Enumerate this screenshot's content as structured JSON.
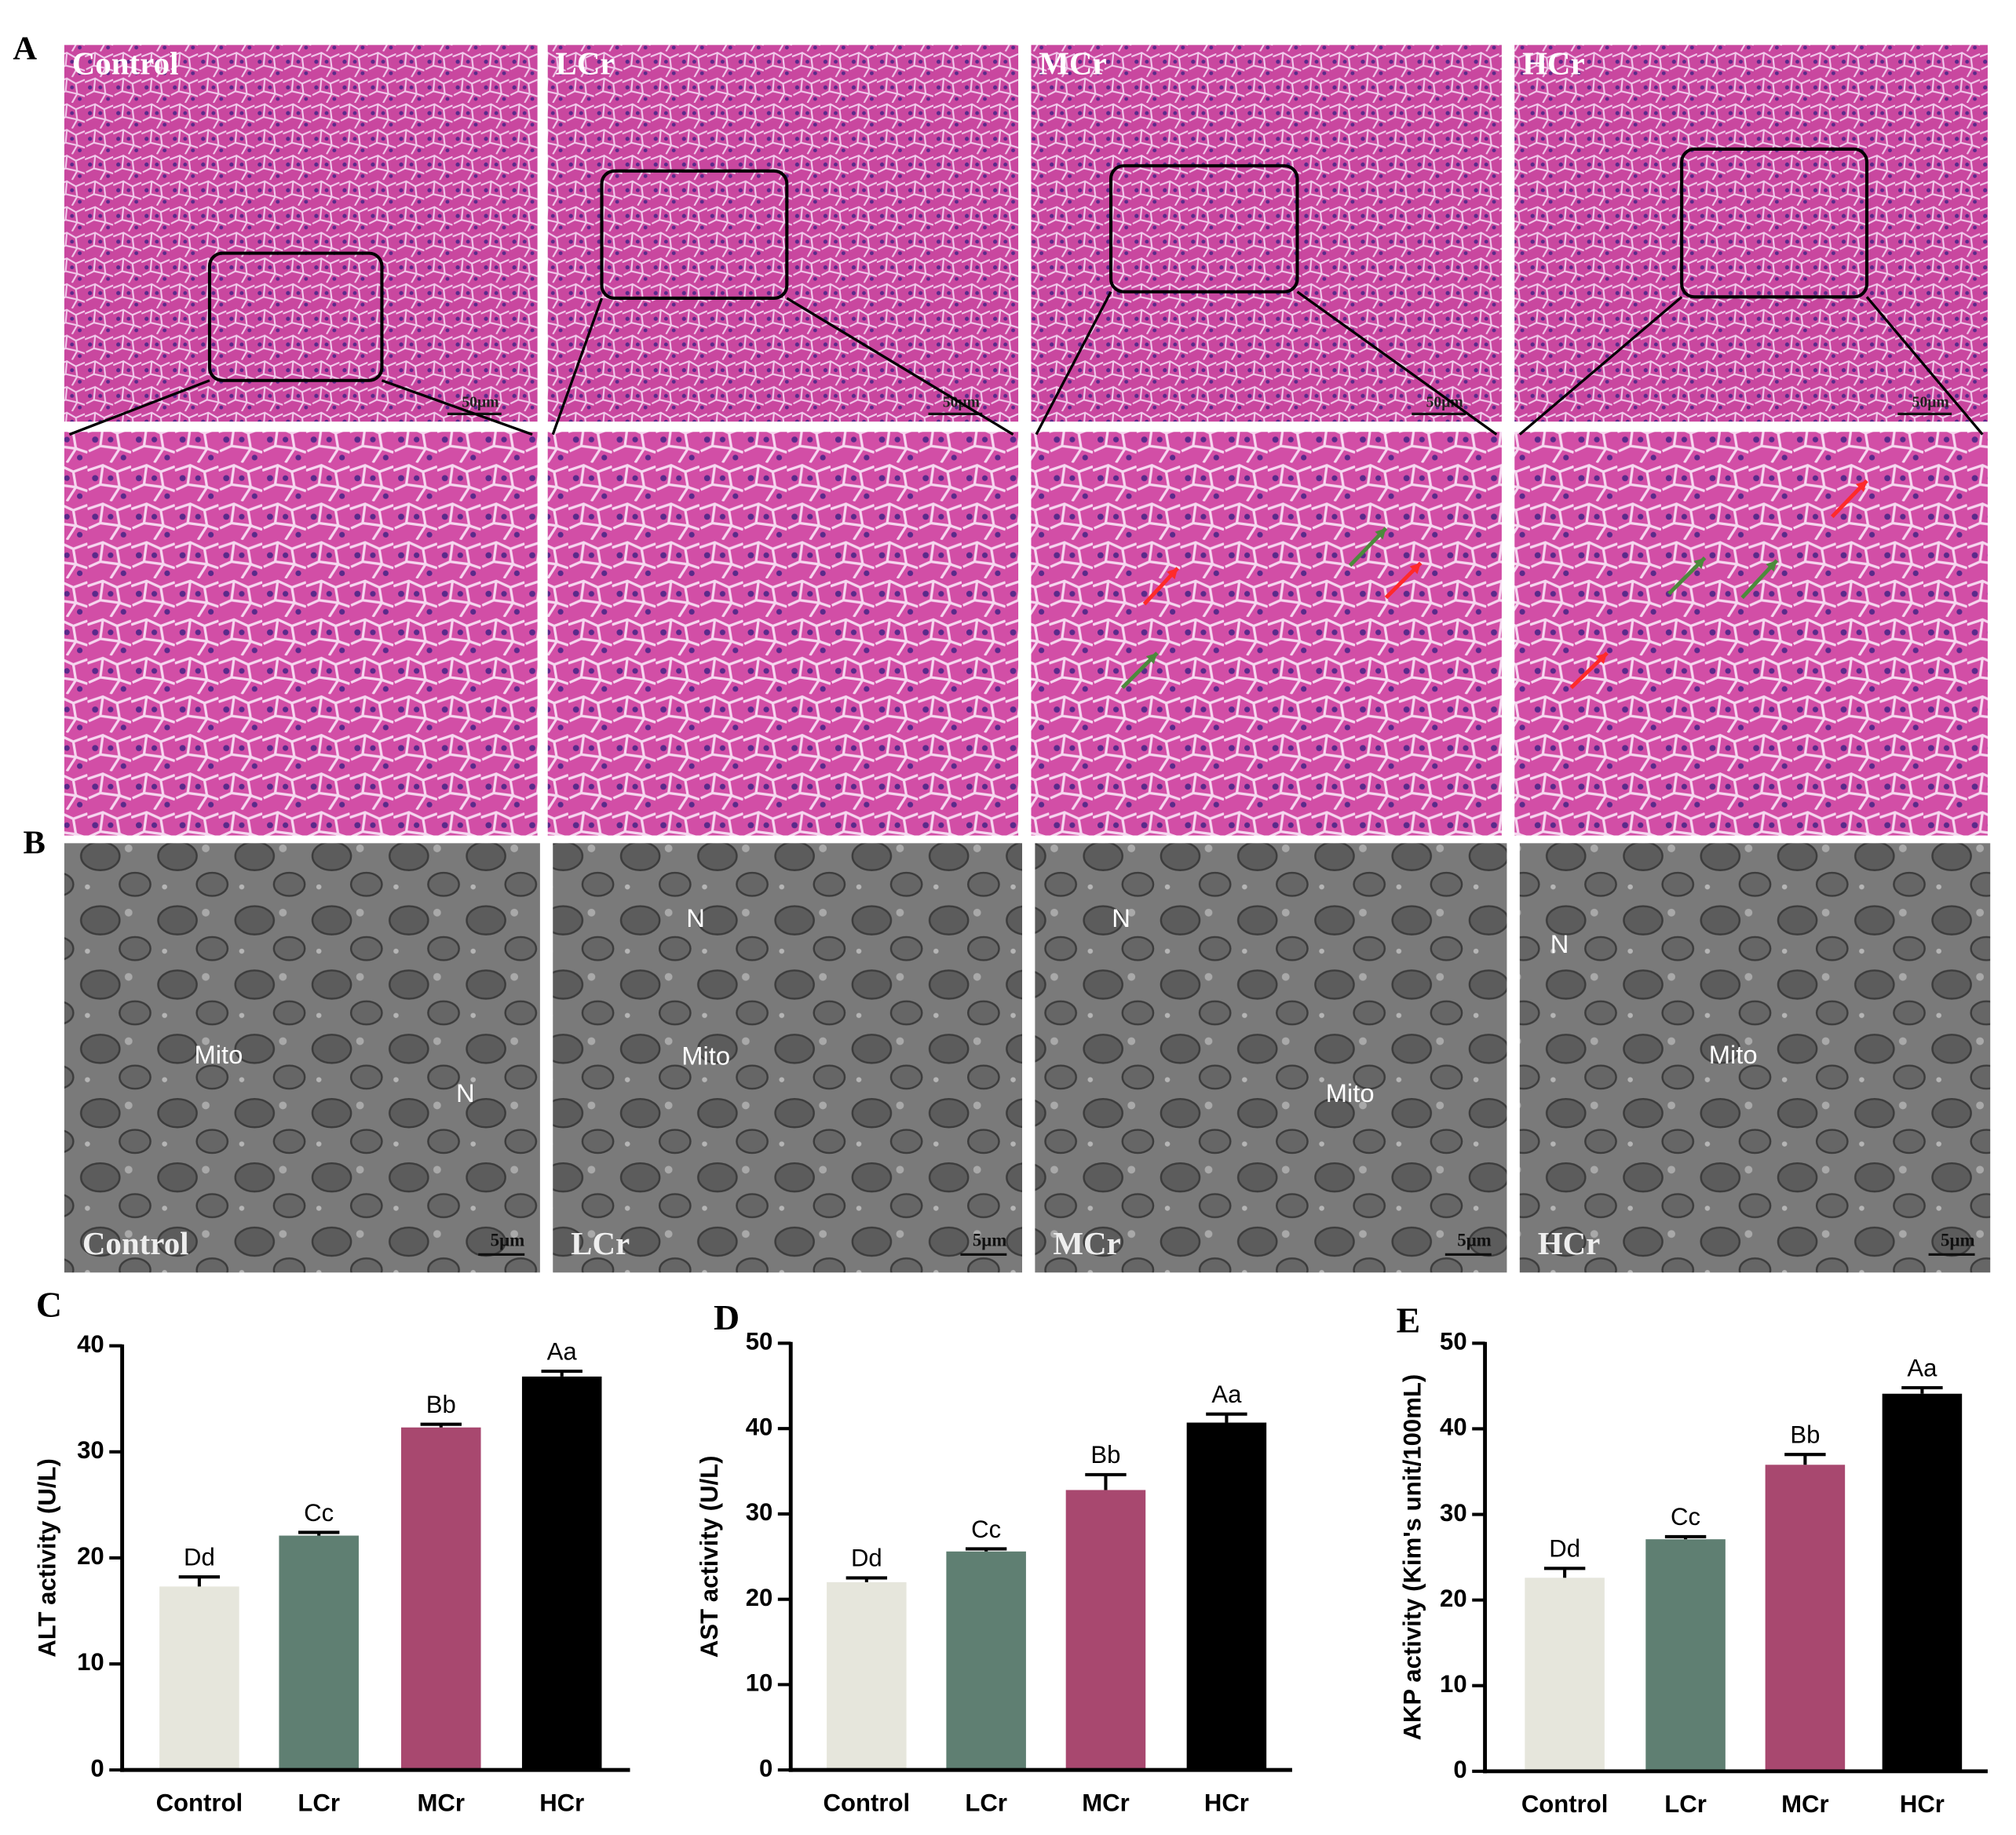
{
  "figure": {
    "panel_labels": [
      "A",
      "B"
    ],
    "groups": [
      "Control",
      "LCr",
      "MCr",
      "HCr"
    ],
    "histology_scale": "50μm",
    "tem_scale": "5μm",
    "tem_labels": [
      [
        "Mito",
        "N"
      ],
      [
        "N",
        "Mito"
      ],
      [
        "N",
        "Mito"
      ],
      [
        "N",
        "Mito"
      ]
    ]
  },
  "chart_data": [
    {
      "type": "bar",
      "panel_label": "C",
      "y_label": "ALT activity (U/L)",
      "categories": [
        "Control",
        "LCr",
        "MCr",
        "HCr"
      ],
      "values": [
        17.3,
        22.1,
        32.3,
        37.1
      ],
      "errors": [
        0.9,
        0.3,
        0.3,
        0.5
      ],
      "annotations": [
        "Dd",
        "Cc",
        "Bb",
        "Aa"
      ],
      "colors": [
        "#e6e6dc",
        "#5f7f72",
        "#a8486f",
        "#000000"
      ],
      "ylim": [
        0,
        40
      ],
      "yticks": [
        0,
        10,
        20,
        30,
        40
      ]
    },
    {
      "type": "bar",
      "panel_label": "D",
      "y_label": "AST activity (U/L)",
      "categories": [
        "Control",
        "LCr",
        "MCr",
        "HCr"
      ],
      "values": [
        22.0,
        25.6,
        32.8,
        40.7
      ],
      "errors": [
        0.5,
        0.3,
        1.8,
        1.0
      ],
      "annotations": [
        "Dd",
        "Cc",
        "Bb",
        "Aa"
      ],
      "colors": [
        "#e6e6dc",
        "#5f7f72",
        "#a8486f",
        "#000000"
      ],
      "ylim": [
        0,
        50
      ],
      "yticks": [
        0,
        10,
        20,
        30,
        40,
        50
      ]
    },
    {
      "type": "bar",
      "panel_label": "E",
      "y_label": "AKP activity (Kim's unit/100mL)",
      "categories": [
        "Control",
        "LCr",
        "MCr",
        "HCr"
      ],
      "values": [
        22.6,
        27.1,
        35.8,
        44.1
      ],
      "errors": [
        1.1,
        0.3,
        1.2,
        0.7
      ],
      "annotations": [
        "Dd",
        "Cc",
        "Bb",
        "Aa"
      ],
      "colors": [
        "#e6e6dc",
        "#5f7f72",
        "#a8486f",
        "#000000"
      ],
      "ylim": [
        0,
        50
      ],
      "yticks": [
        0,
        10,
        20,
        30,
        40,
        50
      ]
    }
  ]
}
